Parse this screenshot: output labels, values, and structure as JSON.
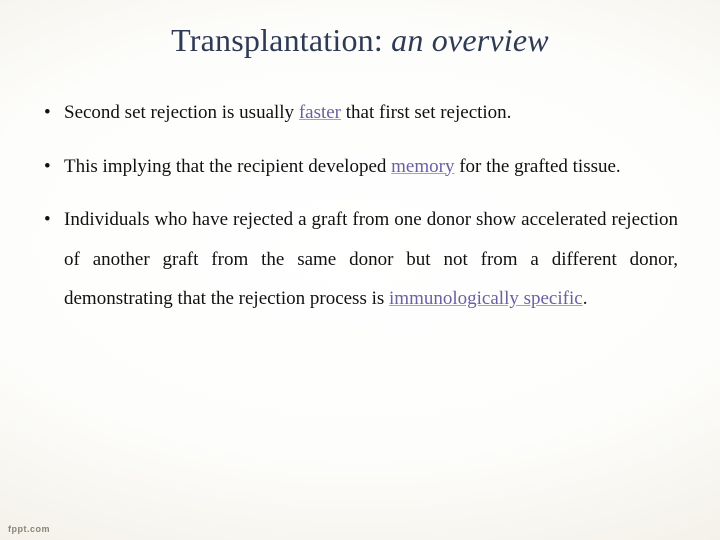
{
  "title": {
    "regular": "Transplantation: ",
    "italic": "an overview",
    "color": "#2f3a55",
    "fontsize_pt": 24
  },
  "body": {
    "fontsize_pt": 14,
    "line_height": 2.08,
    "text_align": "justify",
    "key_term_color": "#6b5fa0"
  },
  "bullets": [
    {
      "pre1": "Second set rejection is usually ",
      "key1": "faster",
      "post1": " that first set rejection."
    },
    {
      "pre1": "This implying that the recipient developed ",
      "key1": "memory",
      "post1": " for the grafted tissue."
    },
    {
      "pre1": "Individuals who have rejected a graft from one donor show accelerated rejection of another graft from the same donor but not from a different donor, demonstrating that the rejection process is ",
      "key1": "immunologically specific",
      "post1": "."
    }
  ],
  "footer": {
    "text": "fppt.com"
  },
  "background": {
    "center_color": "#ffffff",
    "edge_color": "#d9d3c2"
  }
}
